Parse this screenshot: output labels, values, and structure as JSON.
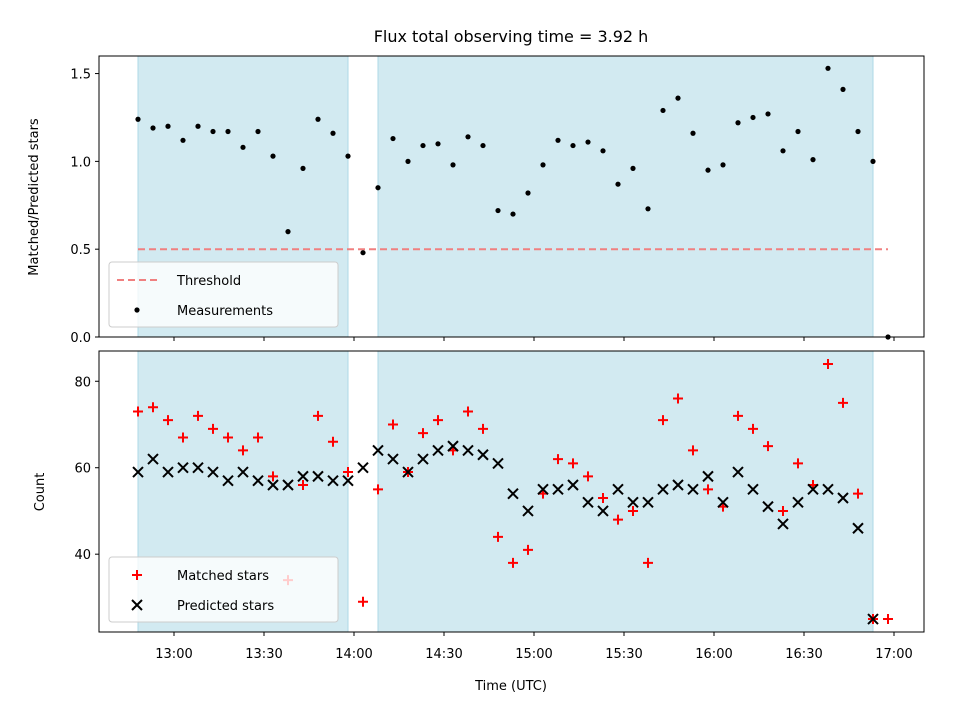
{
  "figure": {
    "title": "Flux total observing time = 3.92 h",
    "xlabel": "Time (UTC)"
  },
  "colors": {
    "band_fill": "#add8e6",
    "threshold": "#f08080",
    "measurement": "#000000",
    "matched": "#ff0000",
    "predicted": "#000000"
  },
  "chart_data": [
    {
      "type": "scatter",
      "panel": "top",
      "ylabel": "Matched/Predicted stars",
      "xlim": [
        "12:35",
        "17:10"
      ],
      "ylim": [
        0,
        1.6
      ],
      "xticks": [
        "13:00",
        "13:30",
        "14:00",
        "14:30",
        "15:00",
        "15:30",
        "16:00",
        "16:30",
        "17:00"
      ],
      "yticks": [
        "0.0",
        "0.5",
        "1.0",
        "1.5"
      ],
      "shaded_intervals": [
        [
          "12:48",
          "13:58"
        ],
        [
          "14:08",
          "16:53"
        ]
      ],
      "legend": {
        "placement": "lower left",
        "entries": [
          "Threshold",
          "Measurements"
        ]
      },
      "series": [
        {
          "name": "Threshold",
          "kind": "dashed-line",
          "x": [
            "12:48",
            "16:58"
          ],
          "y": [
            0.5,
            0.5
          ]
        },
        {
          "name": "Measurements",
          "kind": "dots",
          "x": [
            "12:48",
            "12:53",
            "12:58",
            "13:03",
            "13:08",
            "13:13",
            "13:18",
            "13:23",
            "13:28",
            "13:33",
            "13:38",
            "13:43",
            "13:48",
            "13:53",
            "13:58",
            "14:03",
            "14:08",
            "14:13",
            "14:18",
            "14:23",
            "14:28",
            "14:33",
            "14:38",
            "14:43",
            "14:48",
            "14:53",
            "14:58",
            "15:03",
            "15:08",
            "15:13",
            "15:18",
            "15:23",
            "15:28",
            "15:33",
            "15:38",
            "15:43",
            "15:48",
            "15:53",
            "15:58",
            "16:03",
            "16:08",
            "16:13",
            "16:18",
            "16:23",
            "16:28",
            "16:33",
            "16:38",
            "16:43",
            "16:48",
            "16:53",
            "16:58"
          ],
          "y": [
            1.24,
            1.19,
            1.2,
            1.12,
            1.2,
            1.17,
            1.17,
            1.08,
            1.17,
            1.03,
            0.6,
            0.96,
            1.24,
            1.16,
            1.03,
            0.48,
            0.85,
            1.13,
            1.0,
            1.09,
            1.1,
            0.98,
            1.14,
            1.09,
            0.72,
            0.7,
            0.82,
            0.98,
            1.12,
            1.09,
            1.11,
            1.06,
            0.87,
            0.96,
            0.73,
            1.29,
            1.36,
            1.16,
            0.95,
            0.98,
            1.22,
            1.25,
            1.27,
            1.06,
            1.17,
            1.01,
            1.53,
            1.41,
            1.17,
            1.0,
            0.0
          ]
        }
      ]
    },
    {
      "type": "scatter",
      "panel": "bottom",
      "ylabel": "Count",
      "xlim": [
        "12:35",
        "17:10"
      ],
      "ylim": [
        22,
        87
      ],
      "xticks": [
        "13:00",
        "13:30",
        "14:00",
        "14:30",
        "15:00",
        "15:30",
        "16:00",
        "16:30",
        "17:00"
      ],
      "yticks": [
        "40",
        "60",
        "80"
      ],
      "shaded_intervals": [
        [
          "12:48",
          "13:58"
        ],
        [
          "14:08",
          "16:53"
        ]
      ],
      "legend": {
        "placement": "lower left",
        "entries": [
          "Matched stars",
          "Predicted stars"
        ]
      },
      "series": [
        {
          "name": "Matched stars",
          "marker": "plus",
          "x": [
            "12:48",
            "12:53",
            "12:58",
            "13:03",
            "13:08",
            "13:13",
            "13:18",
            "13:23",
            "13:28",
            "13:33",
            "13:38",
            "13:43",
            "13:48",
            "13:53",
            "13:58",
            "14:03",
            "14:08",
            "14:13",
            "14:18",
            "14:23",
            "14:28",
            "14:33",
            "14:38",
            "14:43",
            "14:48",
            "14:53",
            "14:58",
            "15:03",
            "15:08",
            "15:13",
            "15:18",
            "15:23",
            "15:28",
            "15:33",
            "15:38",
            "15:43",
            "15:48",
            "15:53",
            "15:58",
            "16:03",
            "16:08",
            "16:13",
            "16:18",
            "16:23",
            "16:28",
            "16:33",
            "16:38",
            "16:43",
            "16:48",
            "16:53",
            "16:58"
          ],
          "y": [
            73,
            74,
            71,
            67,
            72,
            69,
            67,
            64,
            67,
            58,
            34,
            56,
            72,
            66,
            59,
            29,
            55,
            70,
            59,
            68,
            71,
            64,
            73,
            69,
            44,
            38,
            41,
            54,
            62,
            61,
            58,
            53,
            48,
            50,
            38,
            71,
            76,
            64,
            55,
            51,
            72,
            69,
            65,
            50,
            61,
            56,
            84,
            75,
            54,
            25,
            25
          ]
        },
        {
          "name": "Predicted stars",
          "marker": "x",
          "x": [
            "12:48",
            "12:53",
            "12:58",
            "13:03",
            "13:08",
            "13:13",
            "13:18",
            "13:23",
            "13:28",
            "13:33",
            "13:38",
            "13:43",
            "13:48",
            "13:53",
            "13:58",
            "14:03",
            "14:08",
            "14:13",
            "14:18",
            "14:23",
            "14:28",
            "14:33",
            "14:38",
            "14:43",
            "14:48",
            "14:53",
            "14:58",
            "15:03",
            "15:08",
            "15:13",
            "15:18",
            "15:23",
            "15:28",
            "15:33",
            "15:38",
            "15:43",
            "15:48",
            "15:53",
            "15:58",
            "16:03",
            "16:08",
            "16:13",
            "16:18",
            "16:23",
            "16:28",
            "16:33",
            "16:38",
            "16:43",
            "16:48",
            "16:53"
          ],
          "y": [
            59,
            62,
            59,
            60,
            60,
            59,
            57,
            59,
            57,
            56,
            56,
            58,
            58,
            57,
            57,
            60,
            64,
            62,
            59,
            62,
            64,
            65,
            64,
            63,
            61,
            54,
            50,
            55,
            55,
            56,
            52,
            50,
            55,
            52,
            52,
            55,
            56,
            55,
            58,
            52,
            59,
            55,
            51,
            47,
            52,
            55,
            55,
            53,
            46,
            25
          ]
        }
      ]
    }
  ]
}
